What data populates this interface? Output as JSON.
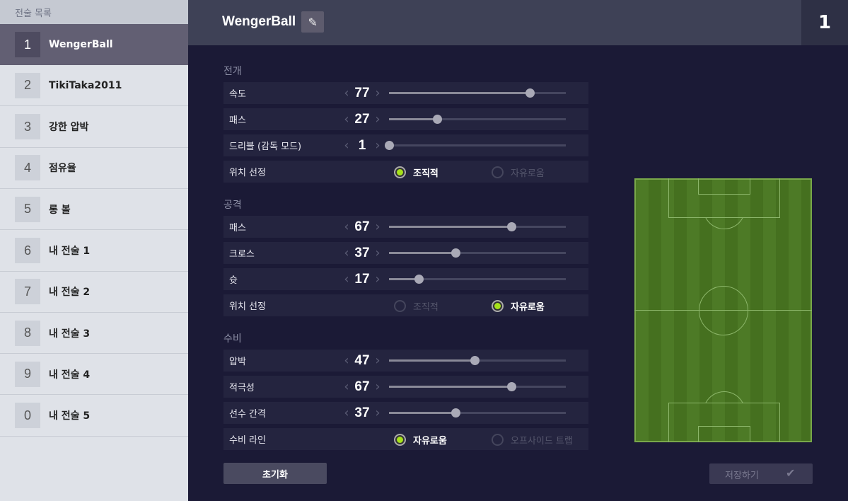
{
  "sidebar": {
    "title": "전술 목록",
    "items": [
      {
        "num": "1",
        "label": "WengerBall"
      },
      {
        "num": "2",
        "label": "TikiTaka2011"
      },
      {
        "num": "3",
        "label": "강한 압박"
      },
      {
        "num": "4",
        "label": "점유율"
      },
      {
        "num": "5",
        "label": "롱 볼"
      },
      {
        "num": "6",
        "label": "내 전술 1"
      },
      {
        "num": "7",
        "label": "내 전술 2"
      },
      {
        "num": "8",
        "label": "내 전술 3"
      },
      {
        "num": "9",
        "label": "내 전술 4"
      },
      {
        "num": "0",
        "label": "내 전술 5"
      }
    ],
    "selected": 0
  },
  "header": {
    "title": "WengerBall",
    "slot": "1"
  },
  "sections": [
    {
      "title": "전개",
      "sliders": [
        {
          "label": "속도",
          "value": 77
        },
        {
          "label": "패스",
          "value": 27
        },
        {
          "label": "드리블 (감독 모드)",
          "value": 1
        }
      ],
      "radio": {
        "label": "위치 선정",
        "options": [
          "조직적",
          "자유로움"
        ],
        "selected": 0
      }
    },
    {
      "title": "공격",
      "sliders": [
        {
          "label": "패스",
          "value": 67
        },
        {
          "label": "크로스",
          "value": 37
        },
        {
          "label": "슛",
          "value": 17
        }
      ],
      "radio": {
        "label": "위치 선정",
        "options": [
          "조직적",
          "자유로움"
        ],
        "selected": 1
      }
    },
    {
      "title": "수비",
      "sliders": [
        {
          "label": "압박",
          "value": 47
        },
        {
          "label": "적극성",
          "value": 67
        },
        {
          "label": "선수 간격",
          "value": 37
        }
      ],
      "radio": {
        "label": "수비 라인",
        "options": [
          "자유로움",
          "오프사이드 트랩"
        ],
        "selected": 0
      }
    }
  ],
  "buttons": {
    "reset": "초기화",
    "save": "저장하기"
  },
  "colors": {
    "accent": "#a6e21a",
    "pitch": "#4d7a26"
  }
}
